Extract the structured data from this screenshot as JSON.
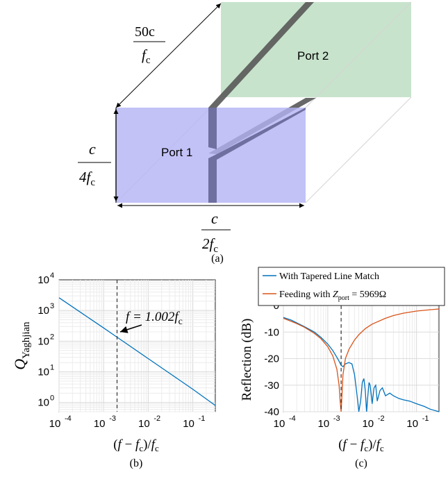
{
  "figure_a": {
    "port1_label": "Port 1",
    "port2_label": "Port 2",
    "depth_label_num": "50c",
    "depth_label_den": "f",
    "depth_label_den_sub": "c",
    "height_label_num": "c",
    "height_label_den": "4f",
    "height_label_den_sub": "c",
    "width_label_num": "c",
    "width_label_den": "2f",
    "width_label_den_sub": "c",
    "caption": "(a)",
    "colors": {
      "port1": "#b3b3f5",
      "port2": "#c8e3cc",
      "blade": "#555555"
    }
  },
  "chart_data": [
    {
      "type": "line",
      "caption": "(b)",
      "xlabel": "(f − f_c)/f_c",
      "ylabel": "Q_Yaghjian",
      "xscale": "log",
      "yscale": "log",
      "xlim": [
        0.0001,
        0.32
      ],
      "ylim": [
        0.5,
        10000
      ],
      "grid": true,
      "x_tick_labels": [
        "10",
        "10",
        "10",
        "10"
      ],
      "x_tick_exps": [
        "-4",
        "-3",
        "-2",
        "-1"
      ],
      "y_tick_labels": [
        "10",
        "10",
        "10",
        "10",
        "10"
      ],
      "y_tick_exps": [
        "0",
        "1",
        "2",
        "3",
        "4"
      ],
      "annotation": {
        "text": "f = 1.002f",
        "sub": "c",
        "x": 0.002
      },
      "vline_x": 0.002,
      "series": [
        {
          "color": "#0072bd",
          "x": [
            0.0001,
            0.0003,
            0.001,
            0.002,
            0.003,
            0.01,
            0.03,
            0.1,
            0.32
          ],
          "y": [
            2600,
            880,
            270,
            135,
            90,
            27,
            9,
            2.7,
            0.8
          ]
        }
      ]
    },
    {
      "type": "line",
      "caption": "(c)",
      "xlabel": "(f − f_c)/f_c",
      "ylabel": "Reflection (dB)",
      "xscale": "log",
      "xlim": [
        0.0001,
        0.32
      ],
      "ylim": [
        -40,
        0
      ],
      "grid": true,
      "legend_position": "top",
      "x_tick_labels": [
        "10",
        "10",
        "10",
        "10"
      ],
      "x_tick_exps": [
        "-4",
        "-3",
        "-2",
        "-1"
      ],
      "y_tick_labels": [
        "0",
        "-10",
        "-20",
        "-30",
        "-40"
      ],
      "vline_x": 0.002,
      "series": [
        {
          "name": "With Tapered Line Match",
          "color": "#0072bd",
          "x": [
            0.0001,
            0.00015,
            0.0002,
            0.0003,
            0.0005,
            0.0007,
            0.001,
            0.0013,
            0.0016,
            0.0018,
            0.002,
            0.0022,
            0.0025,
            0.003,
            0.0035,
            0.004,
            0.0045,
            0.005,
            0.0055,
            0.006,
            0.0065,
            0.007,
            0.0075,
            0.008,
            0.0085,
            0.009,
            0.01,
            0.011,
            0.012,
            0.013,
            0.015,
            0.017,
            0.02,
            0.025,
            0.03,
            0.04,
            0.05,
            0.07,
            0.1,
            0.15,
            0.2,
            0.32
          ],
          "y": [
            -4.5,
            -5.5,
            -6.5,
            -8,
            -10,
            -12,
            -14.5,
            -17,
            -19.5,
            -21,
            -22.5,
            -23,
            -22,
            -21.5,
            -22,
            -26,
            -33,
            -40,
            -36,
            -29,
            -27.5,
            -32,
            -40,
            -34,
            -29,
            -30,
            -37,
            -31,
            -30,
            -36,
            -32,
            -31,
            -34,
            -33,
            -34,
            -35,
            -35.5,
            -36,
            -37,
            -38,
            -39,
            -40
          ]
        },
        {
          "name": "Feeding with Z_port = 5969Ω",
          "color": "#d95319",
          "x": [
            0.0001,
            0.0002,
            0.0003,
            0.0005,
            0.0007,
            0.001,
            0.0013,
            0.0016,
            0.0018,
            0.0019,
            0.002,
            0.0021,
            0.0022,
            0.0025,
            0.003,
            0.004,
            0.005,
            0.007,
            0.01,
            0.02,
            0.03,
            0.05,
            0.1,
            0.2,
            0.32
          ],
          "y": [
            -4.8,
            -6.8,
            -8.2,
            -10.5,
            -12.5,
            -15.5,
            -19,
            -24,
            -30,
            -36,
            -40,
            -33,
            -26,
            -20,
            -16.5,
            -13,
            -11,
            -8.7,
            -7,
            -4.8,
            -3.8,
            -2.9,
            -2.1,
            -1.6,
            -1.3
          ]
        }
      ]
    }
  ]
}
